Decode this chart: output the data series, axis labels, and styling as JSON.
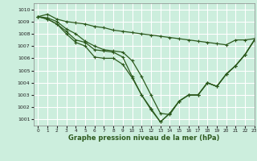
{
  "title": "Graphe pression niveau de la mer (hPa)",
  "bg_color": "#cceedd",
  "grid_color": "#ffffff",
  "line_color": "#2d5a1e",
  "marker": "+",
  "xlim": [
    -0.5,
    23
  ],
  "ylim": [
    1000.5,
    1010.5
  ],
  "yticks": [
    1001,
    1002,
    1003,
    1004,
    1005,
    1006,
    1007,
    1008,
    1009,
    1010
  ],
  "xticks": [
    0,
    1,
    2,
    3,
    4,
    5,
    6,
    7,
    8,
    9,
    10,
    11,
    12,
    13,
    14,
    15,
    16,
    17,
    18,
    19,
    20,
    21,
    22,
    23
  ],
  "series": [
    [
      1009.4,
      1009.6,
      1009.2,
      1009.0,
      1008.9,
      1008.8,
      1008.6,
      1008.5,
      1008.3,
      1008.2,
      1008.1,
      1008.0,
      1007.9,
      1007.8,
      1007.7,
      1007.6,
      1007.5,
      1007.4,
      1007.3,
      1007.2,
      1007.1,
      1007.5,
      1007.5,
      1007.6
    ],
    [
      1009.4,
      1009.3,
      1009.0,
      1008.4,
      1008.0,
      1007.4,
      1007.0,
      1006.7,
      1006.6,
      1006.5,
      1005.8,
      1004.5,
      1003.0,
      1001.5,
      1001.4,
      1002.5,
      1003.0,
      1003.0,
      1004.0,
      1003.7,
      1004.7,
      1005.4,
      1006.3,
      1007.5
    ],
    [
      1009.4,
      1009.2,
      1008.8,
      1008.2,
      1007.5,
      1007.3,
      1006.7,
      1006.6,
      1006.5,
      1006.1,
      1004.5,
      1003.0,
      1001.9,
      1000.8,
      1001.5,
      1002.5,
      1003.0,
      1003.0,
      1004.0,
      1003.7,
      1004.7,
      1005.4,
      1006.3,
      1007.5
    ],
    [
      1009.4,
      1009.2,
      1008.8,
      1008.0,
      1007.3,
      1007.0,
      1006.1,
      1006.0,
      1006.0,
      1005.5,
      1004.4,
      1003.0,
      1001.8,
      1000.8,
      1001.5,
      1002.5,
      1003.0,
      1003.0,
      1004.0,
      1003.7,
      1004.7,
      1005.4,
      1006.3,
      1007.5
    ]
  ]
}
